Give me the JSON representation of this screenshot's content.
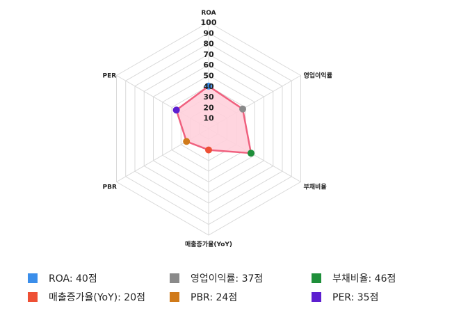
{
  "chart_data": {
    "type": "radar",
    "categories": [
      "ROA",
      "영업이익률",
      "부채비율",
      "매출증가율(YoY)",
      "PBR",
      "PER"
    ],
    "values": [
      40,
      37,
      46,
      20,
      24,
      35
    ],
    "rlim": [
      0,
      100
    ],
    "ticks": [
      "10",
      "20",
      "30",
      "40",
      "50",
      "60",
      "70",
      "80",
      "90",
      "100"
    ],
    "grid": true,
    "series_color": "#f0607e",
    "fill_color": "#ffd0dc",
    "point_colors": [
      "#3b8eea",
      "#8a8a8a",
      "#1e8f3a",
      "#ee5035",
      "#d07a1a",
      "#5d1fd0"
    ],
    "legend": [
      {
        "label": "ROA: 40점",
        "color": "#3b8eea"
      },
      {
        "label": "영업이익률: 37점",
        "color": "#8a8a8a"
      },
      {
        "label": "부채비율: 46점",
        "color": "#1e8f3a"
      },
      {
        "label": "매출증가율(YoY): 20점",
        "color": "#ee5035"
      },
      {
        "label": "PBR: 24점",
        "color": "#d07a1a"
      },
      {
        "label": "PER: 35점",
        "color": "#5d1fd0"
      }
    ]
  }
}
